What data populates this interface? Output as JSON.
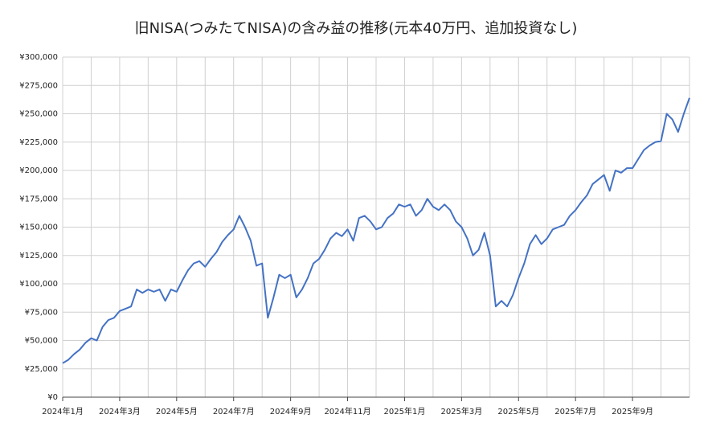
{
  "chart_data": {
    "type": "line",
    "title": "旧NISA(つみたてNISA)の含み益の推移(元本40万円、追加投資なし)",
    "categories": [
      "2024年1月",
      null,
      null,
      null,
      null,
      null,
      null,
      null,
      null,
      null,
      "2024年3月",
      null,
      null,
      null,
      null,
      null,
      null,
      null,
      null,
      null,
      "2024年5月",
      null,
      null,
      null,
      null,
      null,
      null,
      null,
      null,
      null,
      "2024年7月",
      null,
      null,
      null,
      null,
      null,
      null,
      null,
      null,
      null,
      "2024年9月",
      null,
      null,
      null,
      null,
      null,
      null,
      null,
      null,
      null,
      "2024年11月",
      null,
      null,
      null,
      null,
      null,
      null,
      null,
      null,
      null,
      "2025年1月",
      null,
      null,
      null,
      null,
      null,
      null,
      null,
      null,
      null,
      "2025年3月",
      null,
      null,
      null,
      null,
      null,
      null,
      null,
      null,
      null,
      "2025年5月",
      null,
      null,
      null,
      null,
      null,
      null,
      null,
      null,
      null,
      "2025年7月",
      null,
      null,
      null,
      null,
      null,
      null,
      null,
      null,
      null,
      "2025年9月",
      null,
      null,
      null,
      null,
      null,
      null,
      null,
      null,
      null,
      null
    ],
    "series": [
      {
        "color": "#4472c4",
        "values": [
          30000,
          33000,
          38000,
          42000,
          48000,
          52000,
          50000,
          62000,
          68000,
          70000,
          76000,
          78000,
          80000,
          95000,
          92000,
          95000,
          93000,
          95000,
          85000,
          95000,
          93000,
          103000,
          112000,
          118000,
          120000,
          115000,
          122000,
          128000,
          137000,
          143000,
          148000,
          160000,
          150000,
          138000,
          116000,
          118000,
          70000,
          88000,
          108000,
          105000,
          108000,
          88000,
          95000,
          105000,
          118000,
          122000,
          130000,
          140000,
          145000,
          142000,
          148000,
          138000,
          158000,
          160000,
          155000,
          148000,
          150000,
          158000,
          162000,
          170000,
          168000,
          170000,
          160000,
          165000,
          175000,
          168000,
          165000,
          170000,
          165000,
          155000,
          150000,
          140000,
          125000,
          130000,
          145000,
          125000,
          80000,
          85000,
          80000,
          90000,
          105000,
          118000,
          135000,
          143000,
          135000,
          140000,
          148000,
          150000,
          152000,
          160000,
          165000,
          172000,
          178000,
          188000,
          192000,
          196000,
          182000,
          200000,
          198000,
          202000,
          202000,
          210000,
          218000,
          222000,
          225000,
          226000,
          250000,
          245000,
          234000,
          250000,
          264000
        ]
      }
    ],
    "ylim": [
      0,
      300000
    ],
    "yticks": [
      {
        "value": 0,
        "label": "¥0"
      },
      {
        "value": 25000,
        "label": "¥25,000"
      },
      {
        "value": 50000,
        "label": "¥50,000"
      },
      {
        "value": 75000,
        "label": "¥75,000"
      },
      {
        "value": 100000,
        "label": "¥100,000"
      },
      {
        "value": 125000,
        "label": "¥125,000"
      },
      {
        "value": 150000,
        "label": "¥150,000"
      },
      {
        "value": 175000,
        "label": "¥175,000"
      },
      {
        "value": 200000,
        "label": "¥200,000"
      },
      {
        "value": 225000,
        "label": "¥225,000"
      },
      {
        "value": 250000,
        "label": "¥250,000"
      },
      {
        "value": 275000,
        "label": "¥275,000"
      },
      {
        "value": 300000,
        "label": "¥300,000"
      }
    ],
    "grid": true
  }
}
